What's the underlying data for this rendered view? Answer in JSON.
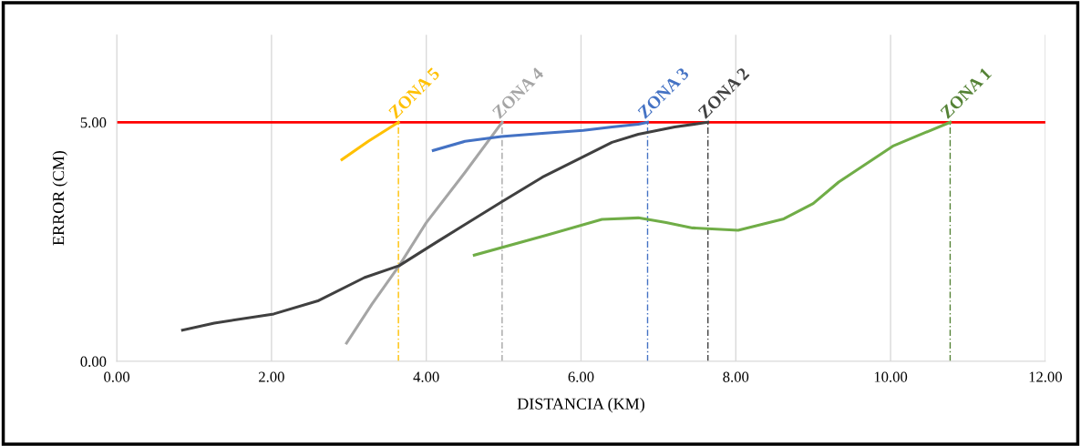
{
  "chart_data": {
    "type": "line",
    "xlabel": "DISTANCIA (KM)",
    "ylabel": "ERROR (CM)",
    "xlim": [
      0,
      12
    ],
    "ylim": [
      0,
      6.83
    ],
    "xticks": [
      {
        "value": 0,
        "label": "0.00"
      },
      {
        "value": 2,
        "label": "2.00"
      },
      {
        "value": 4,
        "label": "4.00"
      },
      {
        "value": 6,
        "label": "6.00"
      },
      {
        "value": 8,
        "label": "8.00"
      },
      {
        "value": 10,
        "label": "10.00"
      },
      {
        "value": 12,
        "label": "12.00"
      }
    ],
    "yticks": [
      {
        "value": 0,
        "label": "0.00"
      },
      {
        "value": 5,
        "label": "5.00"
      }
    ],
    "grid": "x",
    "legend": false,
    "marker": "none",
    "line_style": "solid",
    "series": [
      {
        "color": "#ffc000",
        "x": [
          2.91,
          3.25,
          3.64
        ],
        "values": [
          4.22,
          4.6,
          5.0
        ]
      },
      {
        "color": "#a5a5a5",
        "x": [
          2.97,
          3.3,
          3.65,
          4.0,
          4.5,
          4.98
        ],
        "values": [
          0.38,
          1.2,
          2.0,
          2.9,
          3.95,
          5.0
        ]
      },
      {
        "color": "#4472c4",
        "x": [
          4.09,
          4.5,
          4.97,
          5.5,
          6.03,
          6.4,
          6.74,
          6.86
        ],
        "values": [
          4.41,
          4.6,
          4.7,
          4.77,
          4.83,
          4.9,
          4.96,
          5.0
        ]
      },
      {
        "color": "#404040",
        "x": [
          0.85,
          1.26,
          2.03,
          2.61,
          3.2,
          3.65,
          4.15,
          4.97,
          5.5,
          6.03,
          6.4,
          6.74,
          7.21,
          7.64
        ],
        "values": [
          0.65,
          0.8,
          0.99,
          1.27,
          1.75,
          2.0,
          2.51,
          3.33,
          3.85,
          4.28,
          4.58,
          4.75,
          4.9,
          5.0
        ]
      },
      {
        "color": "#70ad47",
        "x": [
          4.62,
          5.56,
          6.27,
          6.74,
          7.1,
          7.44,
          8.03,
          8.62,
          9.0,
          9.33,
          10.04,
          10.77
        ],
        "values": [
          2.22,
          2.64,
          2.97,
          3.0,
          2.9,
          2.79,
          2.74,
          2.98,
          3.3,
          3.75,
          4.51,
          5.0
        ]
      }
    ],
    "ref_lines": [
      {
        "axis": "y",
        "value": 5,
        "color": "#ff0000",
        "line_style": "solid"
      },
      {
        "axis": "x",
        "value": 3.64,
        "label": "ZONA 5",
        "color": "#ffc000",
        "line_style": "dashed"
      },
      {
        "axis": "x",
        "value": 4.98,
        "label": "ZONA 4",
        "color": "#a5a5a5",
        "line_style": "dashed"
      },
      {
        "axis": "x",
        "value": 6.86,
        "label": "ZONA 3",
        "color": "#4472c4",
        "line_style": "dashed"
      },
      {
        "axis": "x",
        "value": 7.64,
        "label": "ZONA 2",
        "color": "#404040",
        "line_style": "dashed"
      },
      {
        "axis": "x",
        "value": 10.77,
        "label": "ZONA 1",
        "color": "#548235",
        "line_style": "dashed"
      }
    ]
  }
}
